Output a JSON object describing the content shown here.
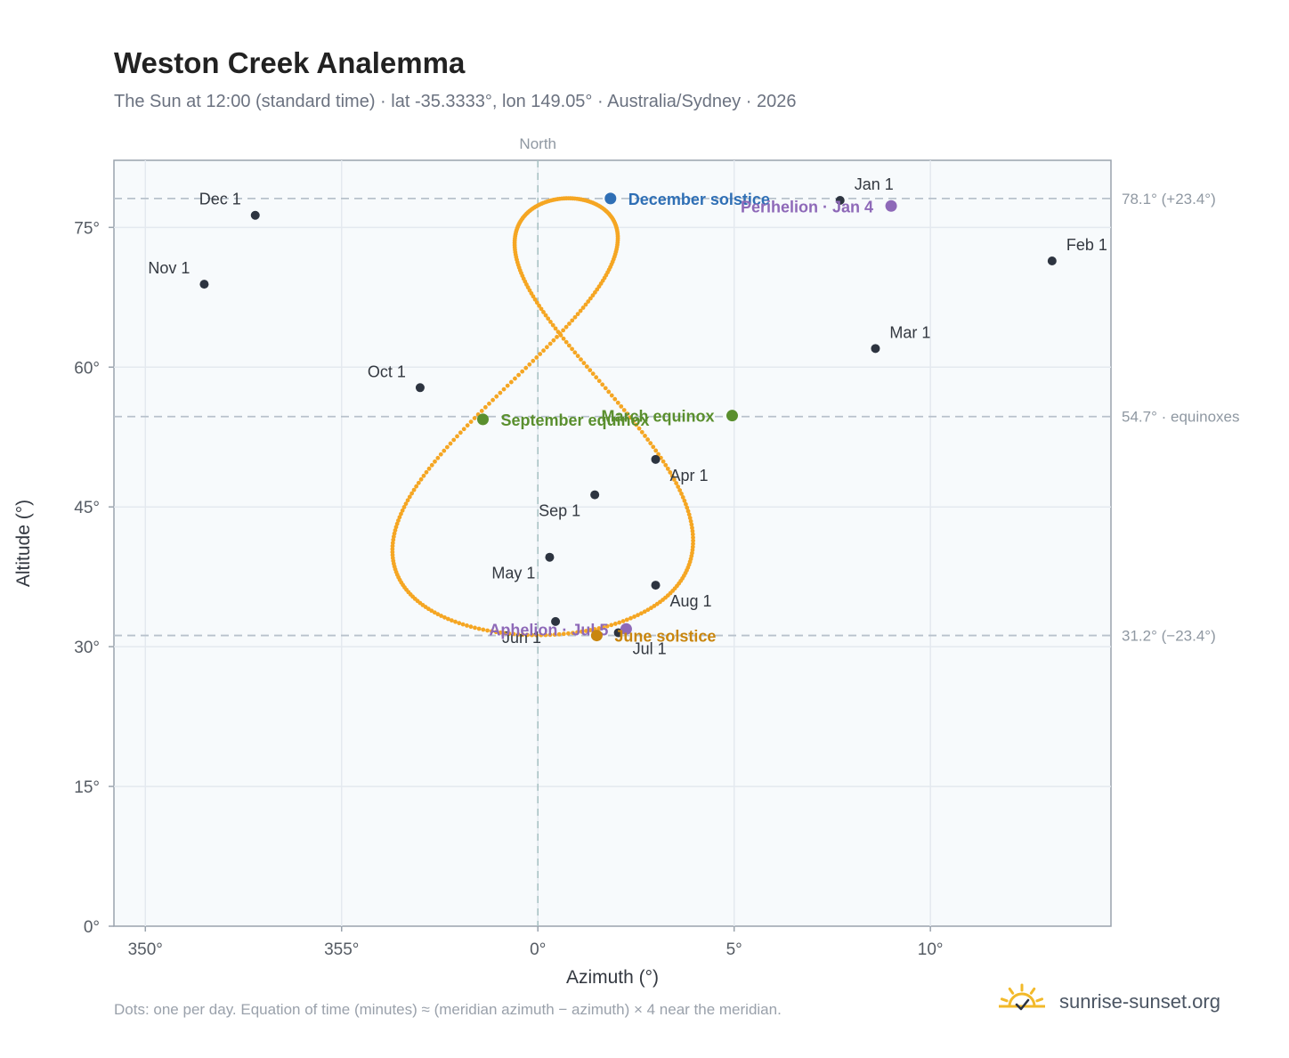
{
  "title": "Weston Creek Analemma",
  "subtitle": "The Sun at 12:00 (standard time) · lat -35.3333°, lon 149.05° · Australia/Sydney · 2026",
  "footnote": "Dots: one per day. Equation of time (minutes) ≈ (meridian azimuth − azimuth) × 4 near the meridian.",
  "brand": "sunrise-sunset.org",
  "colors": {
    "curve": "#f5a623",
    "month_dot": "#2d3440",
    "solstice_dec": "#2f6fb5",
    "solstice_jun": "#c9860f",
    "equinox": "#5a8f2e",
    "apsis": "#8e69b8",
    "plot_bg": "#f7fafc",
    "grid": "#e4e9ef",
    "axis": "#9aa3ad",
    "ref_line": "#b8c2cc",
    "north_line": "#a9c2c4",
    "logo": "#f2b92a"
  },
  "chart_data": {
    "type": "scatter",
    "xlabel": "Azimuth (°)",
    "ylabel": "Altitude (°)",
    "xlim": [
      349.2,
      14.6
    ],
    "ylim": [
      0,
      82.2
    ],
    "x_ticks": [
      {
        "value": 350,
        "label": "350°"
      },
      {
        "value": 355,
        "label": "355°"
      },
      {
        "value": 0,
        "label": "0°"
      },
      {
        "value": 5,
        "label": "5°"
      },
      {
        "value": 10,
        "label": "10°"
      }
    ],
    "y_ticks": [
      {
        "value": 0,
        "label": "0°"
      },
      {
        "value": 15,
        "label": "15°"
      },
      {
        "value": 30,
        "label": "30°"
      },
      {
        "value": 45,
        "label": "45°"
      },
      {
        "value": 60,
        "label": "60°"
      },
      {
        "value": 75,
        "label": "75°"
      }
    ],
    "north": {
      "azimuth": 0,
      "label": "North"
    },
    "reference_lines": [
      {
        "altitude": 78.1,
        "label": "78.1° (+23.4°)"
      },
      {
        "altitude": 54.7,
        "label": "54.7° · equinoxes"
      },
      {
        "altitude": 31.2,
        "label": "31.2° (−23.4°)"
      }
    ],
    "month_markers": [
      {
        "label": "Jan 1",
        "az": 7.7,
        "alt": 77.9,
        "pos": "above-right"
      },
      {
        "label": "Feb 1",
        "az": 13.1,
        "alt": 71.4,
        "pos": "above-right"
      },
      {
        "label": "Mar 1",
        "az": 8.6,
        "alt": 62.0,
        "pos": "above-right"
      },
      {
        "label": "Apr 1",
        "az": 3.0,
        "alt": 50.1,
        "pos": "below-right"
      },
      {
        "label": "May 1",
        "az": 0.3,
        "alt": 39.6,
        "pos": "below-left"
      },
      {
        "label": "Jun 1",
        "az": 0.45,
        "alt": 32.7,
        "pos": "below-left"
      },
      {
        "label": "Jul 1",
        "az": 2.05,
        "alt": 31.5,
        "pos": "below-right"
      },
      {
        "label": "Aug 1",
        "az": 3.0,
        "alt": 36.6,
        "pos": "below-right"
      },
      {
        "label": "Sep 1",
        "az": 1.45,
        "alt": 46.3,
        "pos": "below-left"
      },
      {
        "label": "Oct 1",
        "az": 357.0,
        "alt": 57.8,
        "pos": "above-left"
      },
      {
        "label": "Nov 1",
        "az": 351.5,
        "alt": 68.9,
        "pos": "above-left"
      },
      {
        "label": "Dec 1",
        "az": 352.8,
        "alt": 76.3,
        "pos": "above-left"
      }
    ],
    "events": [
      {
        "label": "December solstice",
        "az": 1.85,
        "alt": 78.1,
        "color": "#2f6fb5",
        "anchor": "start"
      },
      {
        "label": "Perihelion · Jan 4",
        "az": 9.0,
        "alt": 77.3,
        "color": "#8e69b8",
        "anchor": "end"
      },
      {
        "label": "March equinox",
        "az": 4.95,
        "alt": 54.8,
        "color": "#5a8f2e",
        "anchor": "end"
      },
      {
        "label": "September equinox",
        "az": 358.6,
        "alt": 54.4,
        "color": "#5a8f2e",
        "anchor": "start"
      },
      {
        "label": "Aphelion · Jul 5",
        "az": 2.25,
        "alt": 31.9,
        "color": "#8e69b8",
        "anchor": "end"
      },
      {
        "label": "June solstice",
        "az": 1.5,
        "alt": 31.2,
        "color": "#c9860f",
        "anchor": "start"
      }
    ],
    "daily_points": {
      "count": 365,
      "description_source": "one dot per day",
      "max_declination": 23.44,
      "meridian_altitude_base": 54.6667
    }
  }
}
